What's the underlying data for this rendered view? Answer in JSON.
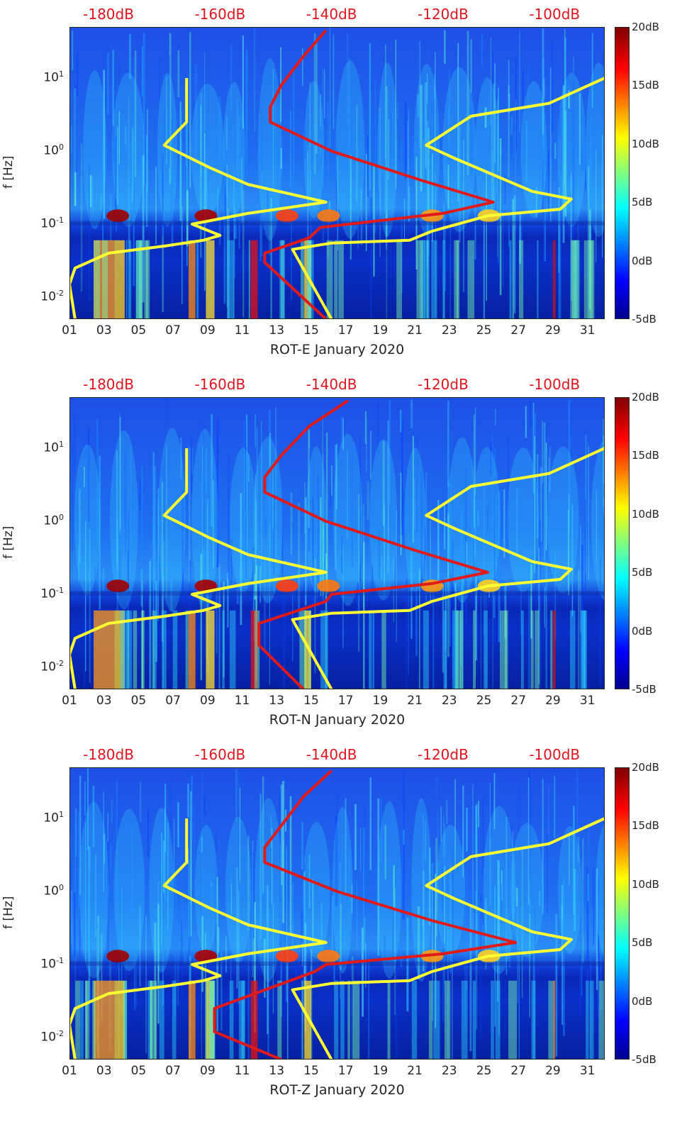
{
  "chart_data": [
    {
      "type": "heatmap",
      "title": "",
      "xlabel": "ROT-E January 2020",
      "ylabel": "f [Hz]",
      "x_tick_labels": [
        "01",
        "03",
        "05",
        "07",
        "09",
        "11",
        "13",
        "15",
        "17",
        "19",
        "21",
        "23",
        "25",
        "27",
        "29",
        "31"
      ],
      "xlim_days": [
        1,
        32
      ],
      "y_scale": "log",
      "ylim": [
        0.005,
        50
      ],
      "y_ticks": [
        {
          "base": "10",
          "exp": "-2"
        },
        {
          "base": "10",
          "exp": "-1"
        },
        {
          "base": "10",
          "exp": "0"
        },
        {
          "base": "10",
          "exp": "1"
        }
      ],
      "colorbar": {
        "min": -5,
        "max": 20,
        "tick_labels": [
          "20dB",
          "15dB",
          "10dB",
          "5dB",
          "0dB",
          "-5dB"
        ]
      },
      "top_axis_labels": [
        "-180dB",
        "-160dB",
        "-140dB",
        "-120dB",
        "-100dB"
      ],
      "top_axis_range_db": [
        -187,
        -91
      ],
      "series": [
        {
          "name": "yellow reference line (low/high model)",
          "color": "#ffff33",
          "points": [
            [
              -186,
              0.005
            ],
            [
              -187,
              0.015
            ],
            [
              -186,
              0.025
            ],
            [
              -180,
              0.04
            ],
            [
              -170,
              0.05
            ],
            [
              -163,
              0.06
            ],
            [
              -160,
              0.07
            ],
            [
              -165,
              0.1
            ],
            [
              -155,
              0.14
            ],
            [
              -141,
              0.2
            ],
            [
              -155,
              0.35
            ],
            [
              -162,
              0.6
            ],
            [
              -170,
              1.2
            ],
            [
              -166,
              2.5
            ],
            [
              -166,
              10
            ]
          ]
        },
        {
          "name": "yellow reference line (upper)",
          "color": "#ffff33",
          "points": [
            [
              -140,
              0.005
            ],
            [
              -147,
              0.045
            ],
            [
              -140,
              0.055
            ],
            [
              -126,
              0.06
            ],
            [
              -122,
              0.08
            ],
            [
              -112,
              0.13
            ],
            [
              -99,
              0.16
            ],
            [
              -97,
              0.22
            ],
            [
              -104,
              0.28
            ],
            [
              -118,
              0.8
            ],
            [
              -123,
              1.2
            ],
            [
              -115,
              3
            ],
            [
              -101,
              4.5
            ],
            [
              -91,
              10
            ]
          ]
        },
        {
          "name": "red median PSD",
          "color": "#e01a1a",
          "points": [
            [
              -141,
              0.005
            ],
            [
              -152,
              0.03
            ],
            [
              -152,
              0.04
            ],
            [
              -144,
              0.065
            ],
            [
              -142,
              0.09
            ],
            [
              -120,
              0.14
            ],
            [
              -111,
              0.2
            ],
            [
              -124,
              0.4
            ],
            [
              -140,
              1.0
            ],
            [
              -151,
              2.5
            ],
            [
              -151,
              4
            ],
            [
              -149,
              8
            ],
            [
              -145,
              20
            ],
            [
              -141,
              45
            ]
          ]
        }
      ]
    },
    {
      "type": "heatmap",
      "title": "",
      "xlabel": "ROT-N January 2020",
      "ylabel": "f [Hz]",
      "x_tick_labels": [
        "01",
        "03",
        "05",
        "07",
        "09",
        "11",
        "13",
        "15",
        "17",
        "19",
        "21",
        "23",
        "25",
        "27",
        "29",
        "31"
      ],
      "xlim_days": [
        1,
        32
      ],
      "y_scale": "log",
      "ylim": [
        0.005,
        50
      ],
      "y_ticks": [
        {
          "base": "10",
          "exp": "-2"
        },
        {
          "base": "10",
          "exp": "-1"
        },
        {
          "base": "10",
          "exp": "0"
        },
        {
          "base": "10",
          "exp": "1"
        }
      ],
      "colorbar": {
        "min": -5,
        "max": 20,
        "tick_labels": [
          "20dB",
          "15dB",
          "10dB",
          "5dB",
          "0dB",
          "-5dB"
        ]
      },
      "top_axis_labels": [
        "-180dB",
        "-160dB",
        "-140dB",
        "-120dB",
        "-100dB"
      ],
      "top_axis_range_db": [
        -187,
        -91
      ],
      "series": [
        {
          "name": "yellow reference line (low/high model)",
          "color": "#ffff33",
          "points": [
            [
              -186,
              0.005
            ],
            [
              -187,
              0.015
            ],
            [
              -186,
              0.025
            ],
            [
              -180,
              0.04
            ],
            [
              -170,
              0.05
            ],
            [
              -163,
              0.06
            ],
            [
              -160,
              0.07
            ],
            [
              -165,
              0.1
            ],
            [
              -155,
              0.14
            ],
            [
              -141,
              0.2
            ],
            [
              -155,
              0.35
            ],
            [
              -162,
              0.6
            ],
            [
              -170,
              1.2
            ],
            [
              -166,
              2.5
            ],
            [
              -166,
              10
            ]
          ]
        },
        {
          "name": "yellow reference line (upper)",
          "color": "#ffff33",
          "points": [
            [
              -140,
              0.005
            ],
            [
              -147,
              0.045
            ],
            [
              -140,
              0.055
            ],
            [
              -126,
              0.06
            ],
            [
              -122,
              0.08
            ],
            [
              -112,
              0.13
            ],
            [
              -99,
              0.16
            ],
            [
              -97,
              0.22
            ],
            [
              -104,
              0.28
            ],
            [
              -118,
              0.8
            ],
            [
              -123,
              1.2
            ],
            [
              -115,
              3
            ],
            [
              -101,
              4.5
            ],
            [
              -91,
              10
            ]
          ]
        },
        {
          "name": "red median PSD",
          "color": "#e01a1a",
          "points": [
            [
              -145,
              0.005
            ],
            [
              -153,
              0.02
            ],
            [
              -153,
              0.04
            ],
            [
              -141,
              0.08
            ],
            [
              -140,
              0.1
            ],
            [
              -122,
              0.14
            ],
            [
              -112,
              0.2
            ],
            [
              -125,
              0.4
            ],
            [
              -141,
              1.0
            ],
            [
              -152,
              2.5
            ],
            [
              -152,
              4
            ],
            [
              -149,
              8
            ],
            [
              -144,
              20
            ],
            [
              -137,
              45
            ]
          ]
        }
      ]
    },
    {
      "type": "heatmap",
      "title": "",
      "xlabel": "ROT-Z January 2020",
      "ylabel": "f [Hz]",
      "x_tick_labels": [
        "01",
        "03",
        "05",
        "07",
        "09",
        "11",
        "13",
        "15",
        "17",
        "19",
        "21",
        "23",
        "25",
        "27",
        "29",
        "31"
      ],
      "xlim_days": [
        1,
        32
      ],
      "y_scale": "log",
      "ylim": [
        0.005,
        50
      ],
      "y_ticks": [
        {
          "base": "10",
          "exp": "-2"
        },
        {
          "base": "10",
          "exp": "-1"
        },
        {
          "base": "10",
          "exp": "0"
        },
        {
          "base": "10",
          "exp": "1"
        }
      ],
      "colorbar": {
        "min": -5,
        "max": 20,
        "tick_labels": [
          "20dB",
          "15dB",
          "10dB",
          "5dB",
          "0dB",
          "-5dB"
        ]
      },
      "top_axis_labels": [
        "-180dB",
        "-160dB",
        "-140dB",
        "-120dB",
        "-100dB"
      ],
      "top_axis_range_db": [
        -187,
        -91
      ],
      "series": [
        {
          "name": "yellow reference line (low/high model)",
          "color": "#ffff33",
          "points": [
            [
              -186,
              0.005
            ],
            [
              -187,
              0.015
            ],
            [
              -186,
              0.025
            ],
            [
              -180,
              0.04
            ],
            [
              -170,
              0.05
            ],
            [
              -163,
              0.06
            ],
            [
              -160,
              0.07
            ],
            [
              -165,
              0.1
            ],
            [
              -155,
              0.14
            ],
            [
              -141,
              0.2
            ],
            [
              -155,
              0.35
            ],
            [
              -162,
              0.6
            ],
            [
              -170,
              1.2
            ],
            [
              -166,
              2.5
            ],
            [
              -166,
              10
            ]
          ]
        },
        {
          "name": "yellow reference line (upper)",
          "color": "#ffff33",
          "points": [
            [
              -140,
              0.005
            ],
            [
              -147,
              0.045
            ],
            [
              -140,
              0.055
            ],
            [
              -126,
              0.06
            ],
            [
              -122,
              0.08
            ],
            [
              -112,
              0.13
            ],
            [
              -99,
              0.16
            ],
            [
              -97,
              0.22
            ],
            [
              -104,
              0.28
            ],
            [
              -118,
              0.8
            ],
            [
              -123,
              1.2
            ],
            [
              -115,
              3
            ],
            [
              -101,
              4.5
            ],
            [
              -91,
              10
            ]
          ]
        },
        {
          "name": "red median PSD",
          "color": "#e01a1a",
          "points": [
            [
              -149,
              0.005
            ],
            [
              -161,
              0.012
            ],
            [
              -161,
              0.025
            ],
            [
              -143,
              0.08
            ],
            [
              -141,
              0.1
            ],
            [
              -120,
              0.14
            ],
            [
              -107,
              0.2
            ],
            [
              -122,
              0.4
            ],
            [
              -139,
              1.0
            ],
            [
              -152,
              2.5
            ],
            [
              -152,
              4
            ],
            [
              -149,
              8
            ],
            [
              -145,
              20
            ],
            [
              -140,
              45
            ]
          ]
        }
      ]
    }
  ]
}
